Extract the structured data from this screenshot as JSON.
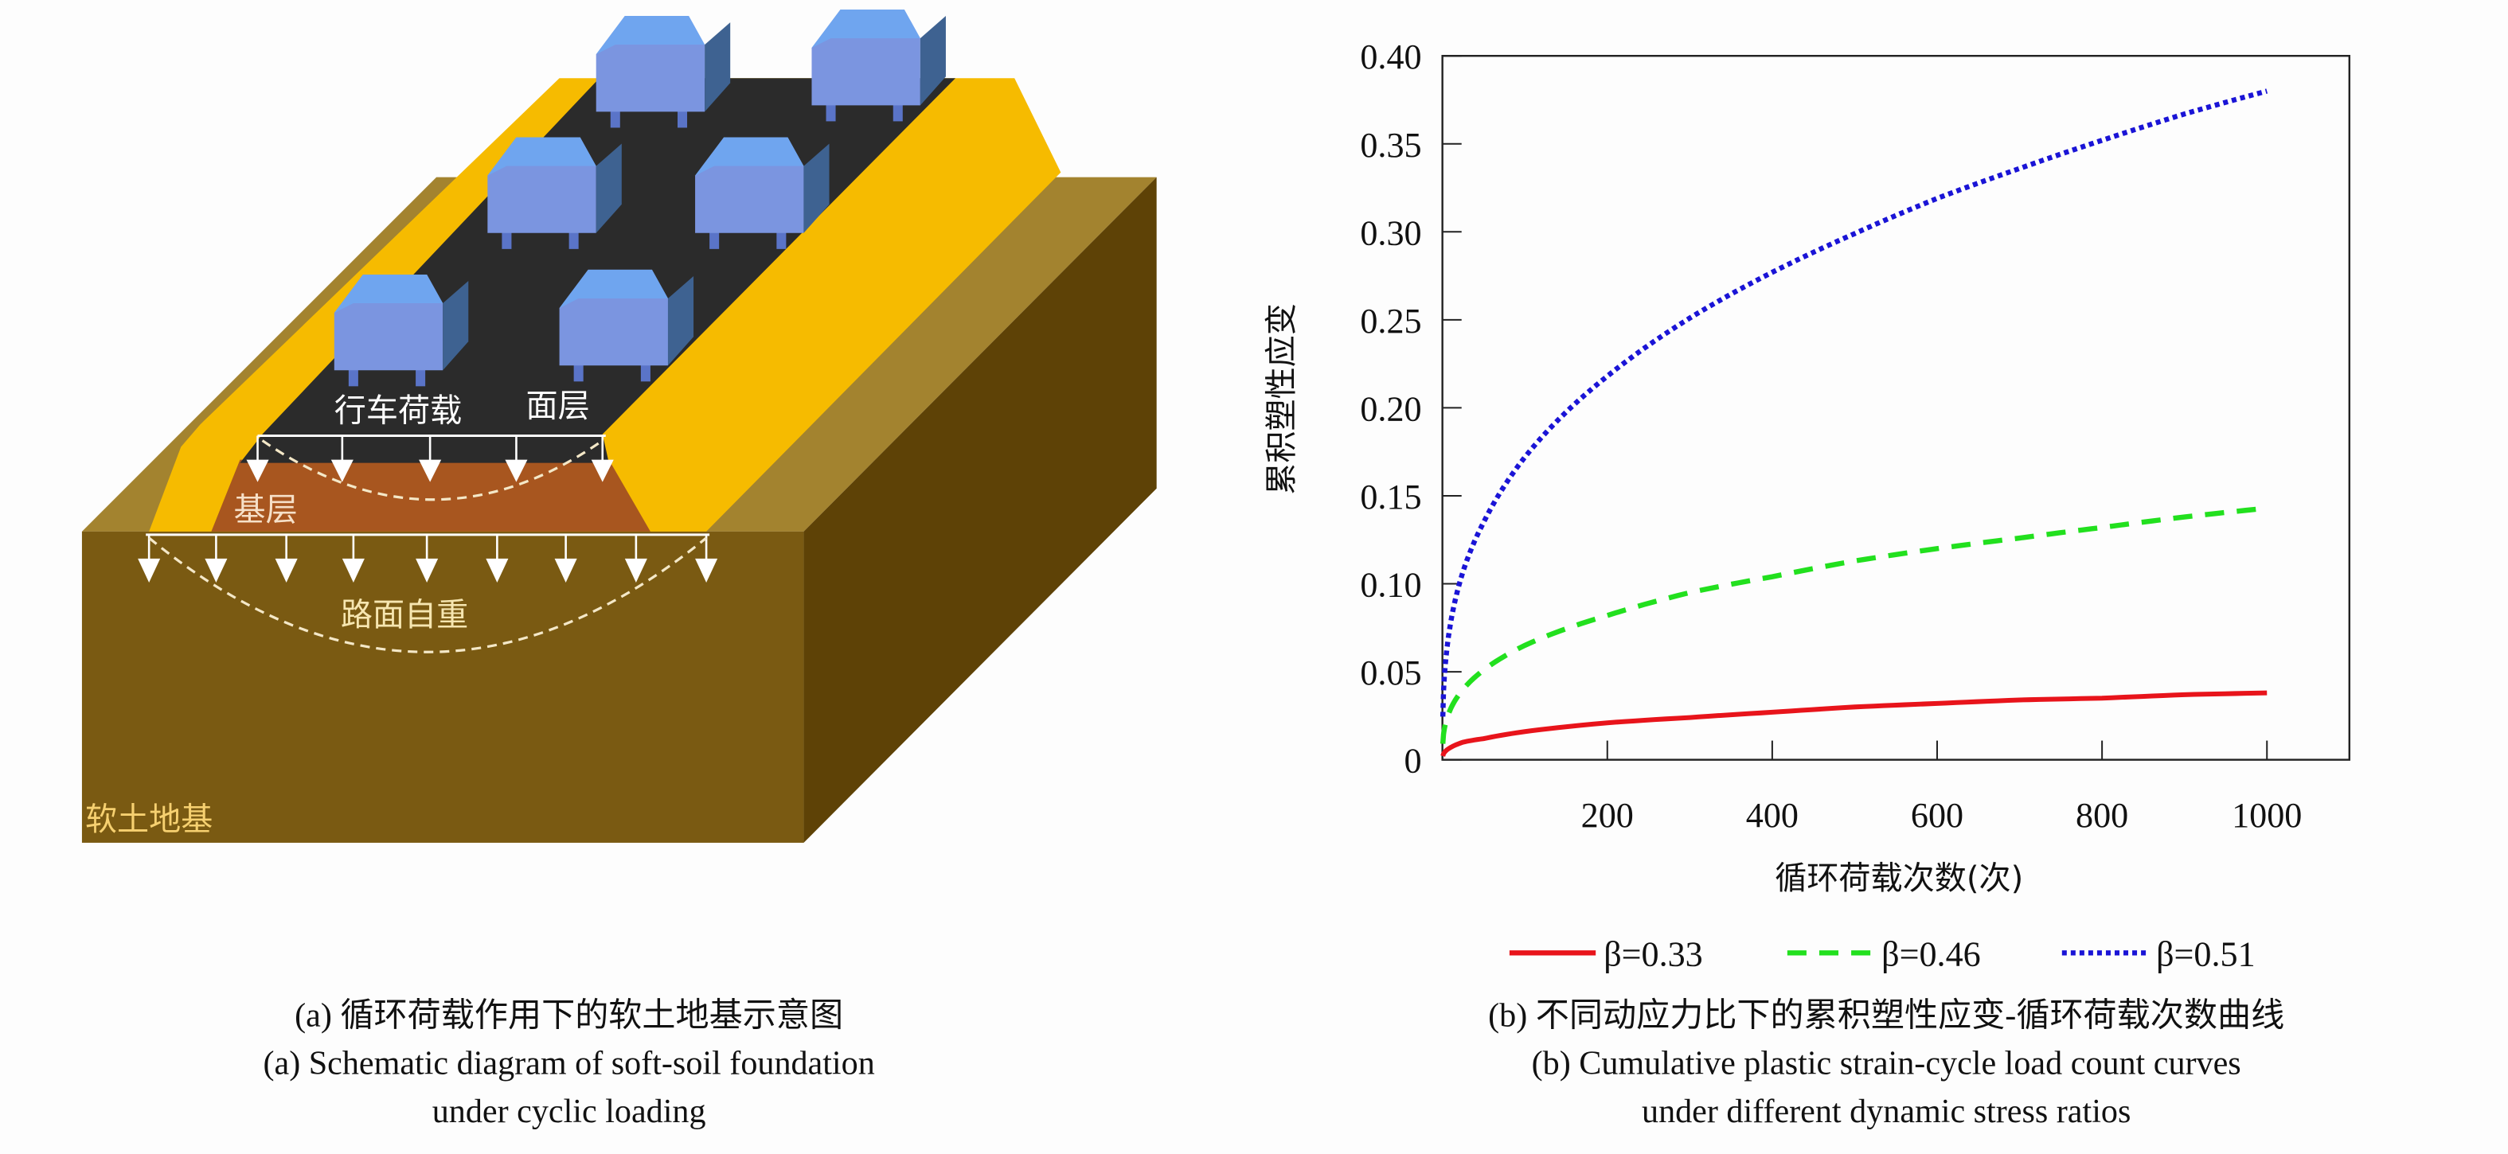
{
  "diagram": {
    "labels": {
      "vehicle_load": "行车荷载",
      "surface_layer": "面层",
      "base_layer": "基层",
      "pavement_self_weight": "路面自重",
      "soft_soil_foundation": "软土地基"
    },
    "colors": {
      "soil_front": "#7a5a12",
      "soil_side": "#5e4206",
      "soil_top": "#a3832f",
      "embankment": "#f6bb00",
      "pavement": "#2b2b2b",
      "base": "#a8561f",
      "vehicle_front": "#7b95e0",
      "vehicle_top": "#6fa5ef",
      "vehicle_side": "#3e6291"
    },
    "vehicle_count": 6
  },
  "chart_data": {
    "type": "line",
    "title": "",
    "xlabel": "循环荷载次数(次)",
    "ylabel": "累积塑性应变",
    "xlim": [
      0,
      1100
    ],
    "ylim": [
      0,
      0.4
    ],
    "xticks": [
      "200",
      "400",
      "600",
      "800",
      "1000"
    ],
    "yticks": [
      "0",
      "0.05",
      "0.10",
      "0.15",
      "0.20",
      "0.25",
      "0.30",
      "0.35",
      "0.40"
    ],
    "grid": false,
    "legend_position": "bottom",
    "x": [
      1,
      10,
      25,
      50,
      100,
      200,
      300,
      400,
      500,
      600,
      700,
      800,
      900,
      1000
    ],
    "series": [
      {
        "name": "β=0.33",
        "color": "#e8141b",
        "style": "solid",
        "values": [
          0.003,
          0.007,
          0.01,
          0.012,
          0.016,
          0.021,
          0.024,
          0.027,
          0.03,
          0.032,
          0.034,
          0.035,
          0.037,
          0.038
        ]
      },
      {
        "name": "β=0.46",
        "color": "#22e01e",
        "style": "dashed",
        "values": [
          0.013,
          0.029,
          0.04,
          0.051,
          0.065,
          0.082,
          0.095,
          0.104,
          0.113,
          0.12,
          0.126,
          0.132,
          0.138,
          0.143
        ]
      },
      {
        "name": "β=0.51",
        "color": "#1a14d6",
        "style": "dotted",
        "values": [
          0.035,
          0.078,
          0.107,
          0.135,
          0.172,
          0.218,
          0.251,
          0.277,
          0.299,
          0.319,
          0.336,
          0.352,
          0.367,
          0.38
        ]
      }
    ]
  },
  "captions": {
    "a_cn": "(a) 循环荷载作用下的软土地基示意图",
    "a_en_1": "(a) Schematic diagram of soft-soil foundation",
    "a_en_2": "under cyclic loading",
    "b_cn": "(b) 不同动应力比下的累积塑性应变-循环荷载次数曲线",
    "b_en_1": "(b) Cumulative plastic strain-cycle load count curves",
    "b_en_2": "under different dynamic stress ratios"
  }
}
